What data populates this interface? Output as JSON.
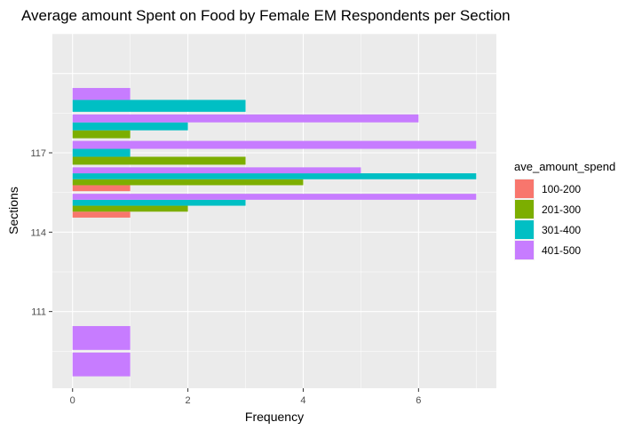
{
  "chart_data": {
    "type": "bar",
    "orientation": "horizontal",
    "title": "Average amount Spent on Food by Female EM Respondents per Section",
    "xlabel": "Frequency",
    "ylabel": "Sections",
    "xlim": [
      -0.35,
      7.35
    ],
    "ylim": [
      108.1,
      121.5
    ],
    "x_ticks": [
      0,
      2,
      4,
      6
    ],
    "y_ticks": [
      111,
      114,
      117
    ],
    "grid": true,
    "legend": {
      "title": "ave_amount_spend",
      "position": "right",
      "entries": [
        {
          "label": "100-200",
          "color": "#F8766D"
        },
        {
          "label": "201-300",
          "color": "#7CAE00"
        },
        {
          "label": "301-400",
          "color": "#00BFC4"
        },
        {
          "label": "401-500",
          "color": "#C77CFF"
        }
      ]
    },
    "groups": [
      {
        "section": 109,
        "bars": [
          {
            "series": "401-500",
            "value": 1
          }
        ]
      },
      {
        "section": 110,
        "bars": [
          {
            "series": "401-500",
            "value": 1
          }
        ]
      },
      {
        "section": 115,
        "bars": [
          {
            "series": "100-200",
            "value": 1
          },
          {
            "series": "201-300",
            "value": 2
          },
          {
            "series": "301-400",
            "value": 3
          },
          {
            "series": "401-500",
            "value": 7
          }
        ]
      },
      {
        "section": 116,
        "bars": [
          {
            "series": "100-200",
            "value": 1
          },
          {
            "series": "201-300",
            "value": 4
          },
          {
            "series": "301-400",
            "value": 7
          },
          {
            "series": "401-500",
            "value": 5
          }
        ]
      },
      {
        "section": 117,
        "bars": [
          {
            "series": "201-300",
            "value": 3
          },
          {
            "series": "301-400",
            "value": 1
          },
          {
            "series": "401-500",
            "value": 7
          }
        ]
      },
      {
        "section": 118,
        "bars": [
          {
            "series": "201-300",
            "value": 1
          },
          {
            "series": "301-400",
            "value": 2
          },
          {
            "series": "401-500",
            "value": 6
          }
        ]
      },
      {
        "section": 119,
        "bars": [
          {
            "series": "301-400",
            "value": 3
          },
          {
            "series": "401-500",
            "value": 1
          }
        ]
      }
    ]
  }
}
